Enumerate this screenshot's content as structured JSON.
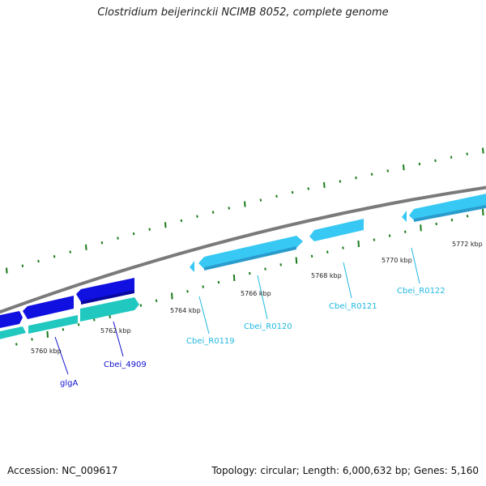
{
  "title": "Clostridium beijerinckii NCIMB 8052, complete genome",
  "footer": {
    "accession": "Accession: NC_009617",
    "topology": "Topology: circular; Length: 6,000,632 bp; Genes: 5,160"
  },
  "colors": {
    "backbone": "#7a7a7a",
    "tick_green": "#1a7a1a",
    "cds_blue": "#1010e0",
    "cds_teal": "#20c8c0",
    "rna_cyan": "#38c8f4",
    "cds_label": "#1010d0",
    "rna_label": "#1fb8e0"
  },
  "ticks": [
    {
      "label": "5760 kbp"
    },
    {
      "label": "5762 kbp"
    },
    {
      "label": "5764 kbp"
    },
    {
      "label": "5766 kbp"
    },
    {
      "label": "5768 kbp"
    },
    {
      "label": "5770 kbp"
    },
    {
      "label": "5772 kbp"
    }
  ],
  "gene_labels": [
    {
      "text": "glgA"
    },
    {
      "text": "Cbei_4909"
    },
    {
      "text": "Cbei_R0119"
    },
    {
      "text": "Cbei_R0120"
    },
    {
      "text": "Cbei_R0121"
    },
    {
      "text": "Cbei_R0122"
    }
  ]
}
